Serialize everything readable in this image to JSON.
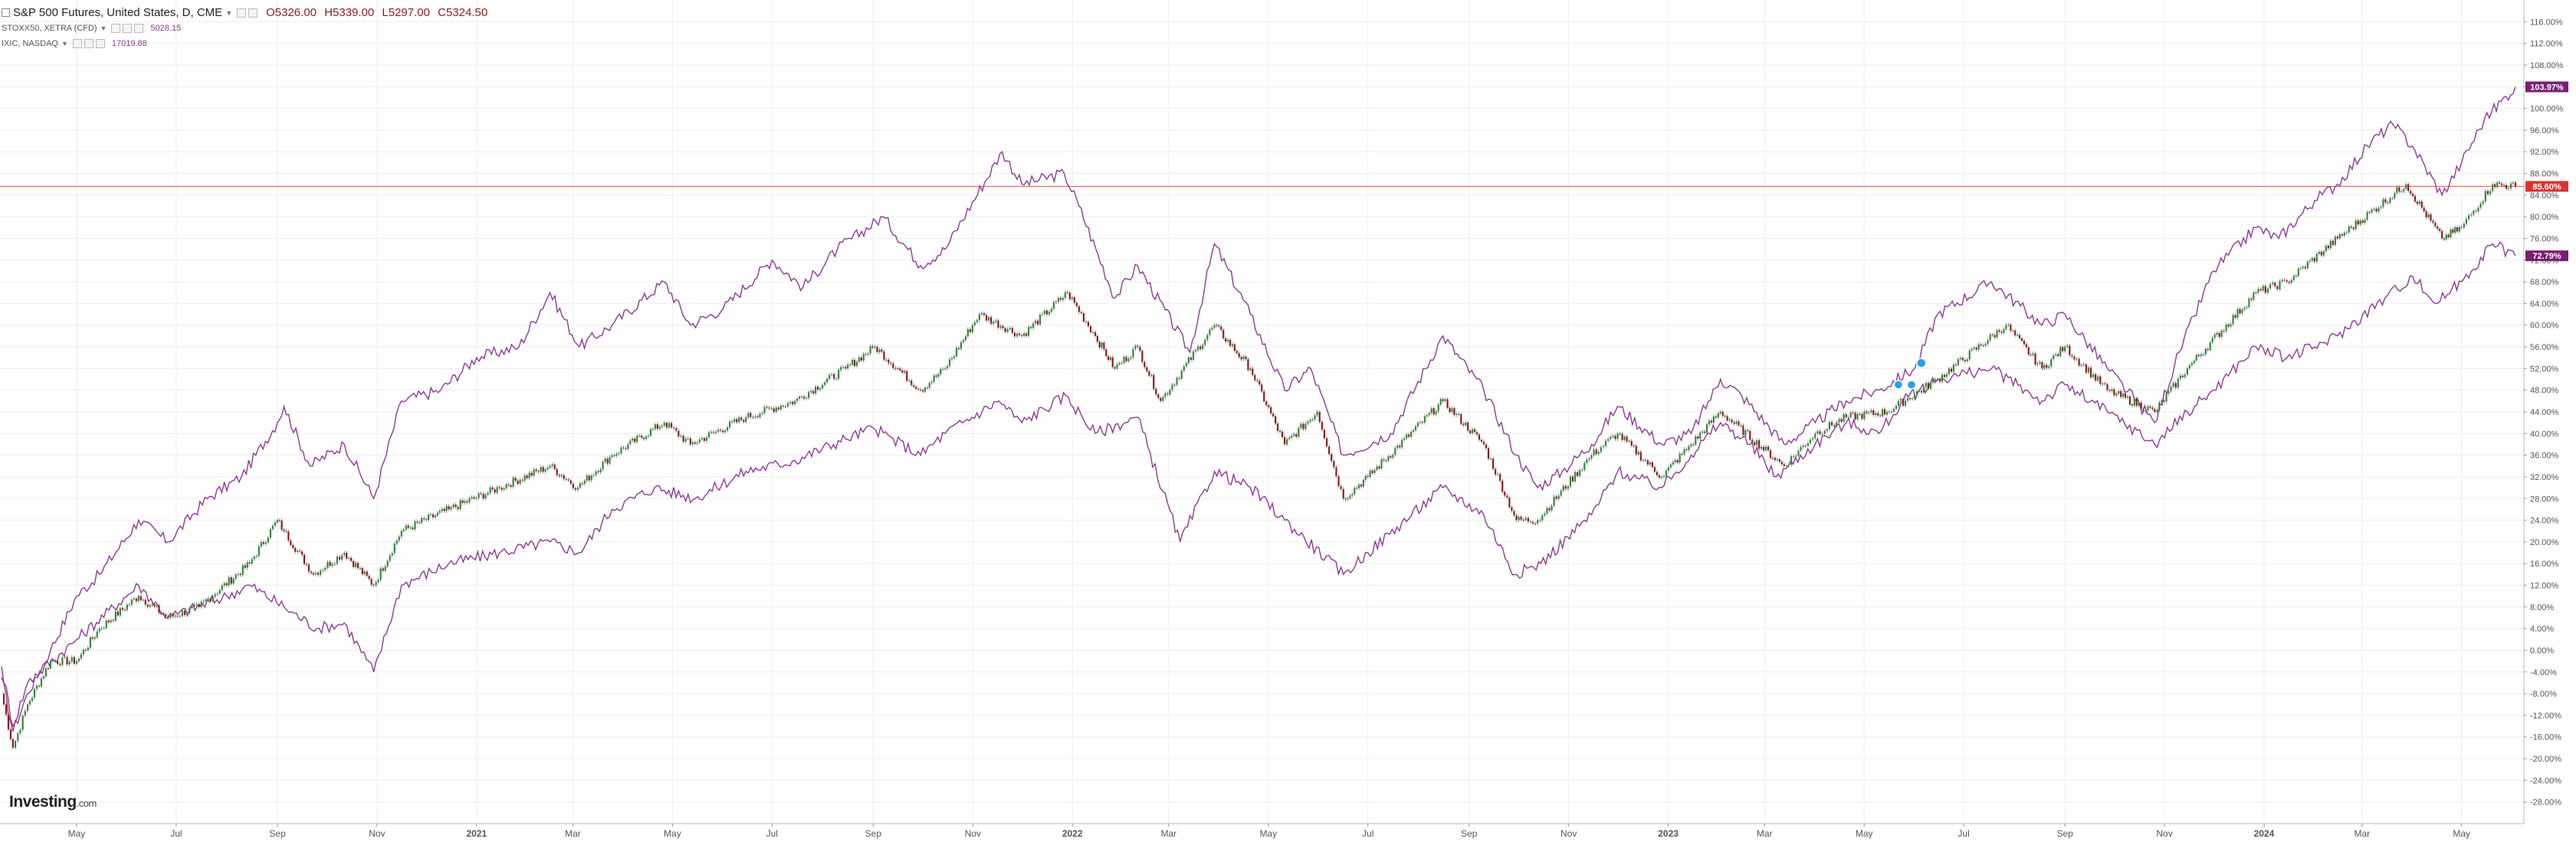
{
  "header": {
    "title": "S&P 500 Futures, United States, D, CME",
    "ohlc": {
      "open": "O5326.00",
      "high": "H5339.00",
      "low": "L5297.00",
      "close": "C5324.50"
    },
    "compare": [
      {
        "label": "STOXX50, XETRA (CFD)",
        "value": "5028.15"
      },
      {
        "label": "IXIC, NASDAQ",
        "value": "17019.88"
      }
    ]
  },
  "logo": {
    "name": "Investing",
    "suffix": ".com"
  },
  "colors": {
    "compare_line": "#8e3a95",
    "candle_up": "#2e8b3a",
    "candle_down": "#8b1d1d",
    "price_line": "#ff4d4d",
    "badge_red": "#e03131",
    "badge_purple": "#7a1f73",
    "grid": "#eeeeee"
  },
  "icons": {
    "collapse": "square-minus-icon",
    "dropdown": "caret-down-icon",
    "event_marker": "balloon-marker-icon"
  },
  "chart_data": {
    "type": "line",
    "y_unit": "%",
    "ylim": [
      -30,
      118
    ],
    "grid": true,
    "y_ticks": [
      "116.00%",
      "112.00%",
      "108.00%",
      "104.00%",
      "100.00%",
      "96.00%",
      "92.00%",
      "88.00%",
      "84.00%",
      "80.00%",
      "76.00%",
      "72.00%",
      "68.00%",
      "64.00%",
      "60.00%",
      "56.00%",
      "52.00%",
      "48.00%",
      "44.00%",
      "40.00%",
      "36.00%",
      "32.00%",
      "28.00%",
      "24.00%",
      "20.00%",
      "16.00%",
      "12.00%",
      "8.00%",
      "4.00%",
      "0.00%",
      "-4.00%",
      "-8.00%",
      "-12.00%",
      "-16.00%",
      "-20.00%",
      "-24.00%",
      "-28.00%"
    ],
    "x_ticks": [
      "May",
      "Jul",
      "Sep",
      "Nov",
      "2021",
      "Mar",
      "May",
      "Jul",
      "Sep",
      "Nov",
      "2022",
      "Mar",
      "May",
      "Jul",
      "Sep",
      "Nov",
      "2023",
      "Mar",
      "May",
      "Jul",
      "Sep",
      "Nov",
      "2024",
      "Mar",
      "May"
    ],
    "x_range": [
      "2020-03-16",
      "2024-06-03"
    ],
    "last_values": [
      {
        "label": "103.97%",
        "value": 103.97,
        "color": "badge_purple"
      },
      {
        "label": "85.60%",
        "value": 85.6,
        "color": "badge_red"
      },
      {
        "label": "72.79%",
        "value": 72.79,
        "color": "badge_purple"
      }
    ],
    "series": [
      {
        "type": "line",
        "color": "compare_line",
        "points": [
          [
            "2020-03-16",
            -5
          ],
          [
            "2020-03-23",
            -15
          ],
          [
            "2020-04-01",
            -8
          ],
          [
            "2020-04-15",
            0
          ],
          [
            "2020-05-01",
            10
          ],
          [
            "2020-05-15",
            14
          ],
          [
            "2020-06-08",
            24
          ],
          [
            "2020-06-26",
            20
          ],
          [
            "2020-07-20",
            28
          ],
          [
            "2020-08-10",
            32
          ],
          [
            "2020-09-01",
            42
          ],
          [
            "2020-09-05",
            45
          ],
          [
            "2020-09-21",
            34
          ],
          [
            "2020-10-12",
            38
          ],
          [
            "2020-10-30",
            28
          ],
          [
            "2020-11-16",
            46
          ],
          [
            "2020-12-10",
            48
          ],
          [
            "2021-01-01",
            54
          ],
          [
            "2021-01-27",
            56
          ],
          [
            "2021-02-15",
            66
          ],
          [
            "2021-03-05",
            56
          ],
          [
            "2021-03-25",
            60
          ],
          [
            "2021-04-26",
            68
          ],
          [
            "2021-05-12",
            60
          ],
          [
            "2021-06-01",
            63
          ],
          [
            "2021-07-01",
            72
          ],
          [
            "2021-07-20",
            67
          ],
          [
            "2021-08-10",
            74
          ],
          [
            "2021-09-07",
            80
          ],
          [
            "2021-09-30",
            71
          ],
          [
            "2021-10-15",
            74
          ],
          [
            "2021-11-19",
            92
          ],
          [
            "2021-12-01",
            86
          ],
          [
            "2021-12-27",
            88
          ],
          [
            "2022-01-05",
            82
          ],
          [
            "2022-01-27",
            65
          ],
          [
            "2022-02-10",
            71
          ],
          [
            "2022-03-14",
            55
          ],
          [
            "2022-03-29",
            75
          ],
          [
            "2022-04-20",
            62
          ],
          [
            "2022-05-11",
            48
          ],
          [
            "2022-05-27",
            52
          ],
          [
            "2022-06-16",
            36
          ],
          [
            "2022-07-15",
            40
          ],
          [
            "2022-08-16",
            58
          ],
          [
            "2022-09-10",
            48
          ],
          [
            "2022-09-30",
            36
          ],
          [
            "2022-10-13",
            30
          ],
          [
            "2022-10-28",
            33
          ],
          [
            "2022-11-15",
            38
          ],
          [
            "2022-12-01",
            45
          ],
          [
            "2022-12-28",
            38
          ],
          [
            "2023-01-15",
            40
          ],
          [
            "2023-02-02",
            50
          ],
          [
            "2023-02-15",
            47
          ],
          [
            "2023-03-13",
            38
          ],
          [
            "2023-04-01",
            42
          ],
          [
            "2023-04-20",
            46
          ],
          [
            "2023-05-10",
            48
          ],
          [
            "2023-06-01",
            52
          ],
          [
            "2023-06-15",
            62
          ],
          [
            "2023-07-18",
            68
          ],
          [
            "2023-08-18",
            60
          ],
          [
            "2023-09-01",
            62
          ],
          [
            "2023-09-27",
            52
          ],
          [
            "2023-10-26",
            42
          ],
          [
            "2023-11-10",
            55
          ],
          [
            "2023-12-01",
            70
          ],
          [
            "2023-12-27",
            78
          ],
          [
            "2024-01-10",
            76
          ],
          [
            "2024-02-01",
            83
          ],
          [
            "2024-02-15",
            86
          ],
          [
            "2024-03-07",
            94
          ],
          [
            "2024-03-20",
            97
          ],
          [
            "2024-04-01",
            93
          ],
          [
            "2024-04-19",
            84
          ],
          [
            "2024-05-01",
            90
          ],
          [
            "2024-05-15",
            98
          ],
          [
            "2024-06-03",
            103.97
          ]
        ]
      },
      {
        "type": "line",
        "color": "compare_line",
        "points": [
          [
            "2020-03-16",
            -3
          ],
          [
            "2020-03-23",
            -14
          ],
          [
            "2020-04-01",
            -6
          ],
          [
            "2020-05-01",
            2
          ],
          [
            "2020-06-08",
            12
          ],
          [
            "2020-06-26",
            6
          ],
          [
            "2020-08-01",
            10
          ],
          [
            "2020-08-15",
            12
          ],
          [
            "2020-09-05",
            8
          ],
          [
            "2020-09-25",
            4
          ],
          [
            "2020-10-12",
            5
          ],
          [
            "2020-10-30",
            -4
          ],
          [
            "2020-11-16",
            12
          ],
          [
            "2020-12-15",
            16
          ],
          [
            "2021-01-15",
            18
          ],
          [
            "2021-02-15",
            20
          ],
          [
            "2021-03-05",
            18
          ],
          [
            "2021-03-25",
            26
          ],
          [
            "2021-04-20",
            30
          ],
          [
            "2021-05-15",
            28
          ],
          [
            "2021-06-15",
            33
          ],
          [
            "2021-07-15",
            35
          ],
          [
            "2021-08-15",
            39
          ],
          [
            "2021-09-01",
            41
          ],
          [
            "2021-09-30",
            36
          ],
          [
            "2021-10-15",
            40
          ],
          [
            "2021-11-17",
            46
          ],
          [
            "2021-12-01",
            42
          ],
          [
            "2021-12-28",
            47
          ],
          [
            "2022-01-15",
            40
          ],
          [
            "2022-02-10",
            43
          ],
          [
            "2022-03-08",
            20
          ],
          [
            "2022-03-29",
            33
          ],
          [
            "2022-04-20",
            30
          ],
          [
            "2022-05-11",
            24
          ],
          [
            "2022-06-16",
            14
          ],
          [
            "2022-07-01",
            18
          ],
          [
            "2022-08-16",
            30
          ],
          [
            "2022-09-10",
            25
          ],
          [
            "2022-09-29",
            14
          ],
          [
            "2022-10-15",
            16
          ],
          [
            "2022-11-15",
            25
          ],
          [
            "2022-12-01",
            33
          ],
          [
            "2022-12-28",
            30
          ],
          [
            "2023-01-15",
            36
          ],
          [
            "2023-02-02",
            42
          ],
          [
            "2023-02-20",
            38
          ],
          [
            "2023-03-08",
            32
          ],
          [
            "2023-04-01",
            38
          ],
          [
            "2023-04-20",
            42
          ],
          [
            "2023-05-10",
            40
          ],
          [
            "2023-05-25",
            46
          ],
          [
            "2023-06-15",
            50
          ],
          [
            "2023-07-18",
            52
          ],
          [
            "2023-08-18",
            46
          ],
          [
            "2023-09-01",
            49
          ],
          [
            "2023-09-27",
            44
          ],
          [
            "2023-10-26",
            38
          ],
          [
            "2023-11-15",
            44
          ],
          [
            "2023-12-01",
            48
          ],
          [
            "2023-12-27",
            56
          ],
          [
            "2024-01-15",
            54
          ],
          [
            "2024-02-01",
            56
          ],
          [
            "2024-02-15",
            58
          ],
          [
            "2024-03-15",
            65
          ],
          [
            "2024-04-01",
            69
          ],
          [
            "2024-04-15",
            64
          ],
          [
            "2024-05-01",
            68
          ],
          [
            "2024-05-20",
            75
          ],
          [
            "2024-06-03",
            72.79
          ]
        ]
      },
      {
        "type": "candlestick",
        "points": [
          [
            "2020-03-16",
            -8
          ],
          [
            "2020-03-23",
            -18
          ],
          [
            "2020-04-01",
            -10
          ],
          [
            "2020-04-15",
            -2
          ],
          [
            "2020-05-01",
            -2
          ],
          [
            "2020-05-15",
            4
          ],
          [
            "2020-06-08",
            10
          ],
          [
            "2020-06-26",
            6
          ],
          [
            "2020-07-15",
            8
          ],
          [
            "2020-08-15",
            16
          ],
          [
            "2020-09-01",
            24
          ],
          [
            "2020-09-05",
            22
          ],
          [
            "2020-09-23",
            14
          ],
          [
            "2020-10-12",
            18
          ],
          [
            "2020-10-30",
            12
          ],
          [
            "2020-11-16",
            22
          ],
          [
            "2020-12-15",
            26
          ],
          [
            "2021-01-15",
            30
          ],
          [
            "2021-02-15",
            34
          ],
          [
            "2021-03-04",
            30
          ],
          [
            "2021-03-25",
            36
          ],
          [
            "2021-04-26",
            42
          ],
          [
            "2021-05-12",
            38
          ],
          [
            "2021-06-15",
            43
          ],
          [
            "2021-07-15",
            46
          ],
          [
            "2021-08-15",
            52
          ],
          [
            "2021-09-02",
            56
          ],
          [
            "2021-09-30",
            48
          ],
          [
            "2021-10-15",
            52
          ],
          [
            "2021-11-05",
            62
          ],
          [
            "2021-12-01",
            58
          ],
          [
            "2021-12-29",
            66
          ],
          [
            "2022-01-15",
            58
          ],
          [
            "2022-01-27",
            52
          ],
          [
            "2022-02-10",
            56
          ],
          [
            "2022-02-24",
            46
          ],
          [
            "2022-03-29",
            60
          ],
          [
            "2022-04-20",
            52
          ],
          [
            "2022-05-11",
            38
          ],
          [
            "2022-05-31",
            44
          ],
          [
            "2022-06-16",
            28
          ],
          [
            "2022-07-01",
            32
          ],
          [
            "2022-08-16",
            46
          ],
          [
            "2022-09-10",
            38
          ],
          [
            "2022-09-30",
            24
          ],
          [
            "2022-10-13",
            24
          ],
          [
            "2022-11-15",
            36
          ],
          [
            "2022-12-01",
            40
          ],
          [
            "2022-12-28",
            32
          ],
          [
            "2023-01-15",
            38
          ],
          [
            "2023-02-02",
            44
          ],
          [
            "2023-03-13",
            34
          ],
          [
            "2023-04-01",
            40
          ],
          [
            "2023-04-20",
            43
          ],
          [
            "2023-05-15",
            44
          ],
          [
            "2023-06-15",
            50
          ],
          [
            "2023-07-27",
            60
          ],
          [
            "2023-08-18",
            52
          ],
          [
            "2023-09-01",
            56
          ],
          [
            "2023-09-27",
            48
          ],
          [
            "2023-10-26",
            44
          ],
          [
            "2023-11-15",
            52
          ],
          [
            "2023-12-27",
            66
          ],
          [
            "2024-01-15",
            68
          ],
          [
            "2024-02-15",
            76
          ],
          [
            "2024-03-28",
            86
          ],
          [
            "2024-04-19",
            76
          ],
          [
            "2024-05-01",
            78
          ],
          [
            "2024-05-20",
            86
          ],
          [
            "2024-06-03",
            85.6
          ]
        ]
      }
    ]
  }
}
